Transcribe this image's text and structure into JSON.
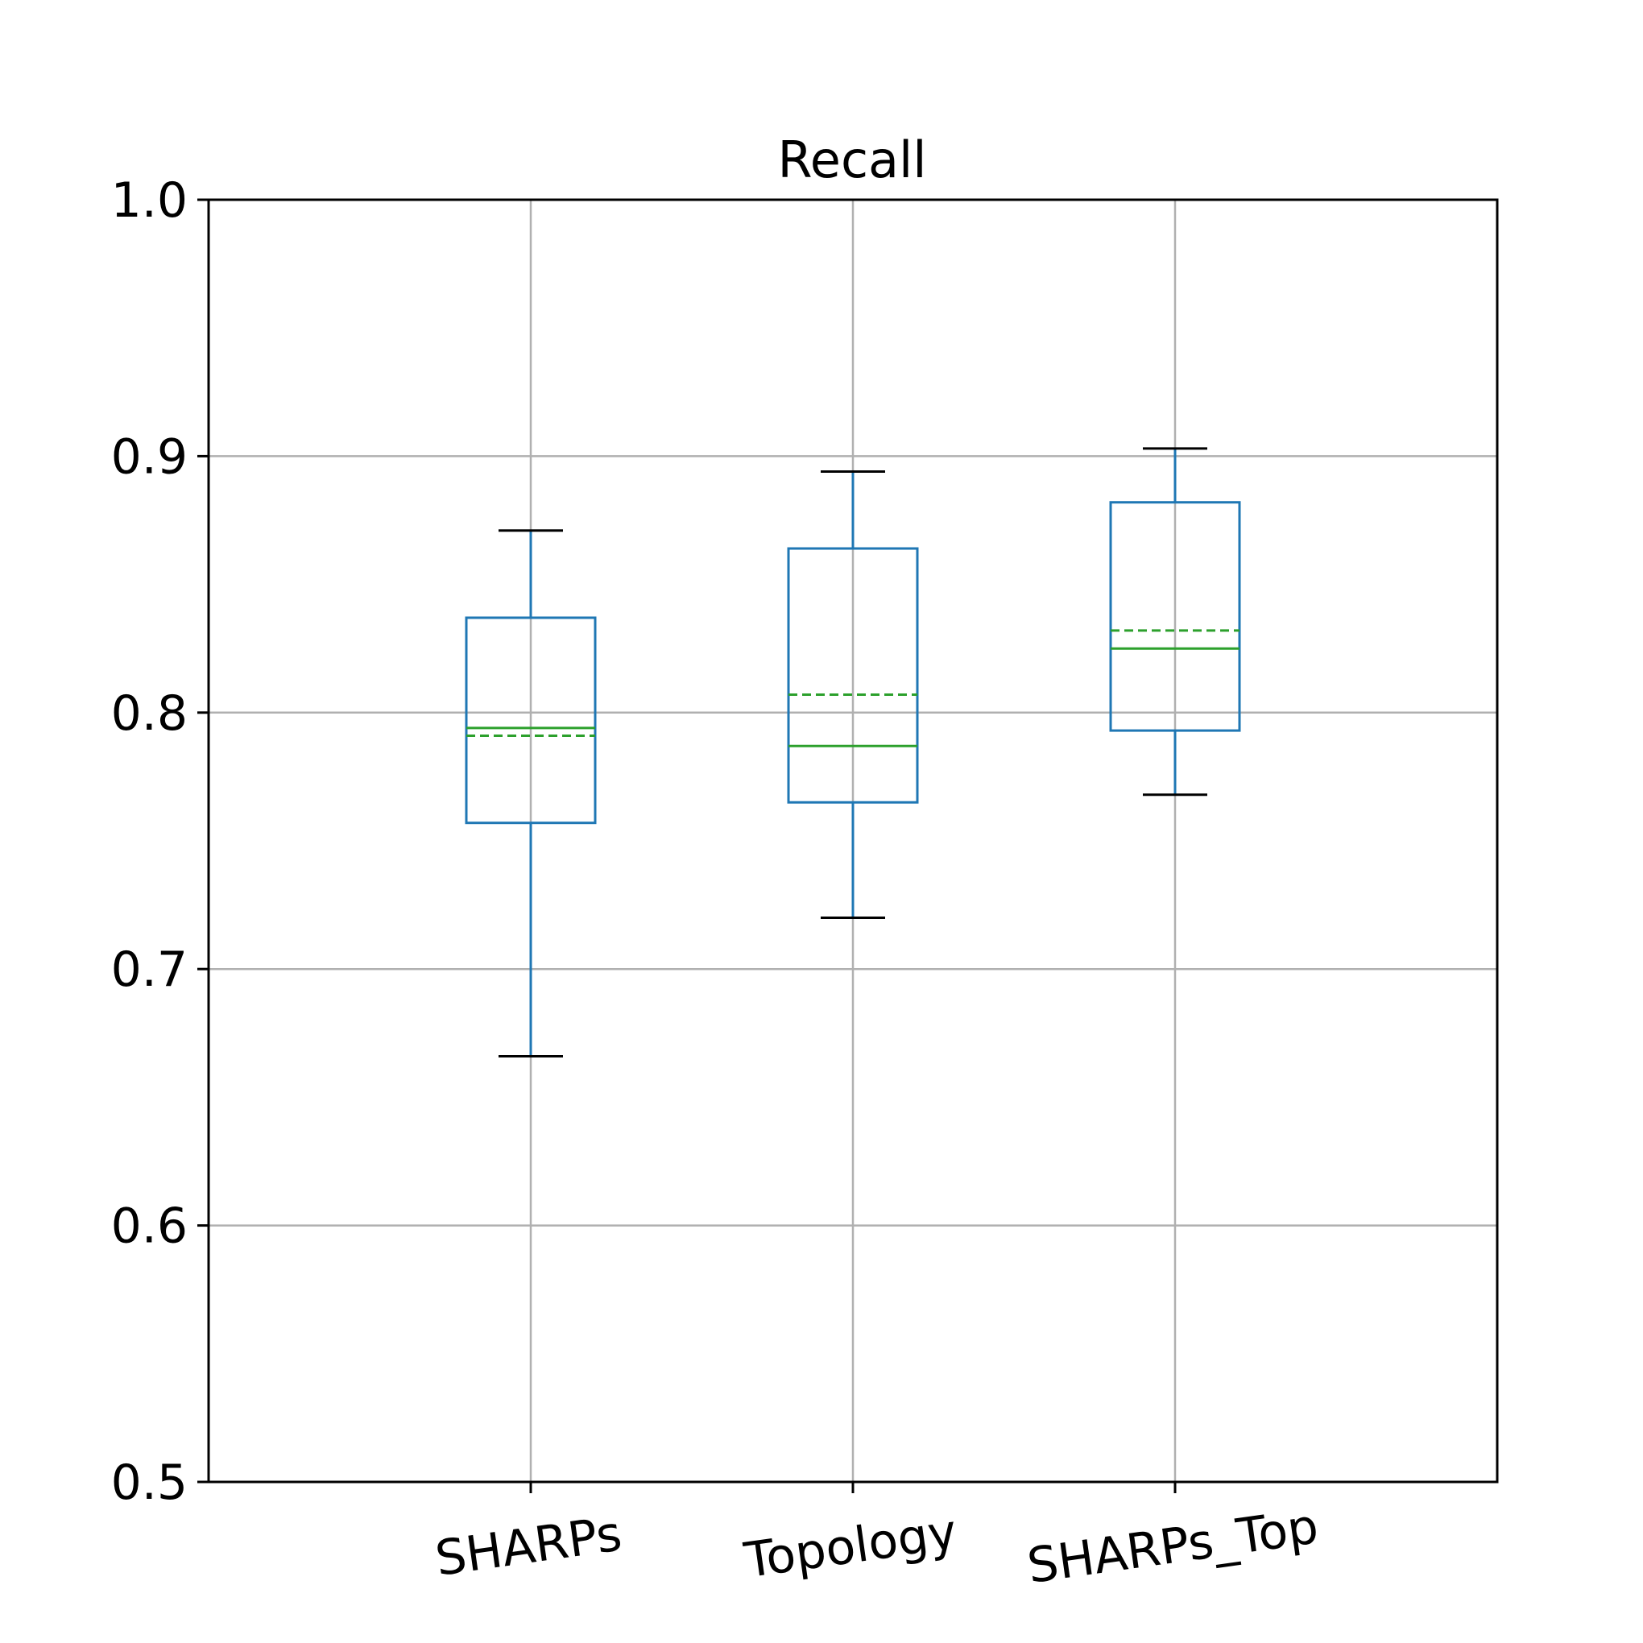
{
  "chart_data": {
    "type": "box",
    "title": "Recall",
    "xlabel": "",
    "ylabel": "",
    "ylim": [
      0.5,
      1.0
    ],
    "yticks": [
      0.5,
      0.6,
      0.7,
      0.8,
      0.9,
      1.0
    ],
    "ytick_labels": [
      "0.5",
      "0.6",
      "0.7",
      "0.8",
      "0.9",
      "1.0"
    ],
    "grid": true,
    "categories": [
      "SHARPs",
      "Topology",
      "SHARPs_Top"
    ],
    "boxes": [
      {
        "whisker_low": 0.666,
        "q1": 0.757,
        "median": 0.794,
        "mean": 0.791,
        "q3": 0.837,
        "whisker_high": 0.871
      },
      {
        "whisker_low": 0.72,
        "q1": 0.765,
        "median": 0.787,
        "mean": 0.807,
        "q3": 0.864,
        "whisker_high": 0.894
      },
      {
        "whisker_low": 0.768,
        "q1": 0.793,
        "median": 0.825,
        "mean": 0.832,
        "q3": 0.882,
        "whisker_high": 0.903
      }
    ],
    "colors": {
      "box": "#1f77b4",
      "median": "#2ca02c",
      "mean": "#2ca02c",
      "cap": "#000000",
      "grid": "#b0b0b0",
      "axes": "#000000"
    }
  }
}
